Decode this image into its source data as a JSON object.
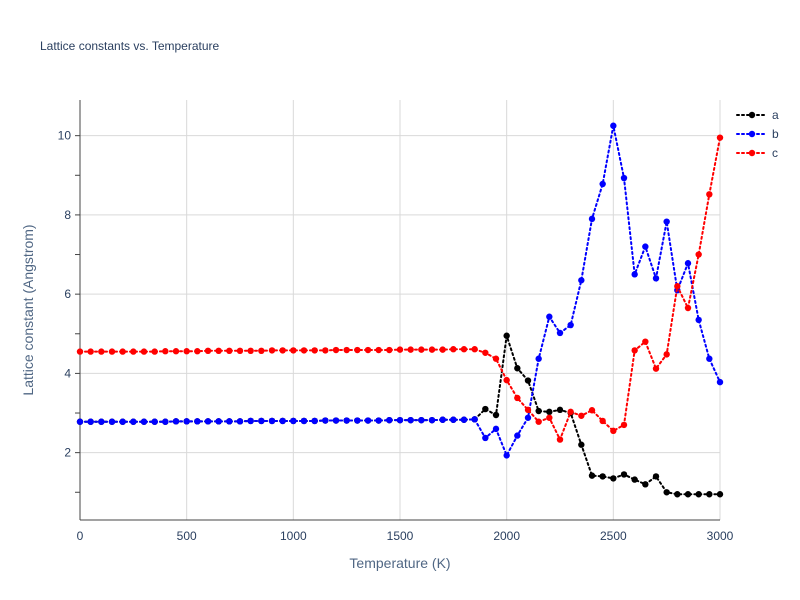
{
  "chart_data": {
    "type": "line",
    "title": "Lattice constants vs. Temperature",
    "xlabel": "Temperature (K)",
    "ylabel": "Lattice constant (Angstrom)",
    "xlim": [
      0,
      3000
    ],
    "ylim": [
      0.3,
      10.9
    ],
    "xticks": [
      0,
      500,
      1000,
      1500,
      2000,
      2500,
      3000
    ],
    "xtick_labels": [
      "0",
      "500",
      "1000",
      "1500",
      "2000",
      "2500",
      "3000"
    ],
    "yticks": [
      2,
      4,
      6,
      8,
      10
    ],
    "ytick_labels": [
      "2",
      "4",
      "6",
      "8",
      "10"
    ],
    "grid": true,
    "legend_position": "top-right",
    "line_style": "dotted",
    "marker": "circle",
    "x": [
      0,
      50,
      100,
      150,
      200,
      250,
      300,
      350,
      400,
      450,
      500,
      550,
      600,
      650,
      700,
      750,
      800,
      850,
      900,
      950,
      1000,
      1050,
      1100,
      1150,
      1200,
      1250,
      1300,
      1350,
      1400,
      1450,
      1500,
      1550,
      1600,
      1650,
      1700,
      1750,
      1800,
      1850,
      1900,
      1950,
      2000,
      2050,
      2100,
      2150,
      2200,
      2250,
      2300,
      2350,
      2400,
      2450,
      2500,
      2550,
      2600,
      2650,
      2700,
      2750,
      2800,
      2850,
      2900,
      2950,
      3000
    ],
    "series": [
      {
        "name": "a",
        "color": "#000000",
        "values": [
          2.78,
          2.78,
          2.78,
          2.78,
          2.78,
          2.78,
          2.78,
          2.78,
          2.78,
          2.79,
          2.79,
          2.79,
          2.79,
          2.79,
          2.79,
          2.79,
          2.8,
          2.8,
          2.8,
          2.8,
          2.8,
          2.8,
          2.8,
          2.81,
          2.81,
          2.81,
          2.81,
          2.81,
          2.81,
          2.82,
          2.82,
          2.82,
          2.82,
          2.82,
          2.83,
          2.83,
          2.83,
          2.84,
          3.1,
          2.95,
          4.95,
          4.13,
          3.82,
          3.05,
          3.03,
          3.08,
          3.0,
          2.2,
          1.42,
          1.4,
          1.35,
          1.45,
          1.32,
          1.2,
          1.4,
          1.0,
          0.95,
          0.95,
          0.95,
          0.95,
          0.95
        ]
      },
      {
        "name": "b",
        "color": "#0000ff",
        "values": [
          2.78,
          2.78,
          2.78,
          2.78,
          2.78,
          2.78,
          2.78,
          2.78,
          2.78,
          2.79,
          2.79,
          2.79,
          2.79,
          2.79,
          2.79,
          2.79,
          2.8,
          2.8,
          2.8,
          2.8,
          2.8,
          2.8,
          2.8,
          2.81,
          2.81,
          2.81,
          2.81,
          2.81,
          2.81,
          2.82,
          2.82,
          2.82,
          2.82,
          2.82,
          2.83,
          2.83,
          2.83,
          2.84,
          2.37,
          2.6,
          1.93,
          2.43,
          2.88,
          4.37,
          5.43,
          5.02,
          5.22,
          6.35,
          7.9,
          8.78,
          10.25,
          8.93,
          6.5,
          7.2,
          6.4,
          7.83,
          6.1,
          6.78,
          5.35,
          4.37,
          3.78
        ]
      },
      {
        "name": "c",
        "color": "#ff0000",
        "values": [
          4.55,
          4.55,
          4.55,
          4.55,
          4.55,
          4.55,
          4.55,
          4.55,
          4.56,
          4.56,
          4.56,
          4.56,
          4.57,
          4.57,
          4.57,
          4.57,
          4.57,
          4.57,
          4.58,
          4.58,
          4.58,
          4.58,
          4.58,
          4.58,
          4.59,
          4.59,
          4.59,
          4.59,
          4.59,
          4.59,
          4.6,
          4.6,
          4.6,
          4.6,
          4.6,
          4.61,
          4.61,
          4.61,
          4.52,
          4.37,
          3.83,
          3.38,
          3.08,
          2.78,
          2.88,
          2.33,
          3.03,
          2.93,
          3.07,
          2.8,
          2.55,
          2.7,
          4.58,
          4.8,
          4.12,
          4.48,
          6.2,
          5.65,
          7.0,
          8.52,
          9.95
        ]
      }
    ]
  }
}
